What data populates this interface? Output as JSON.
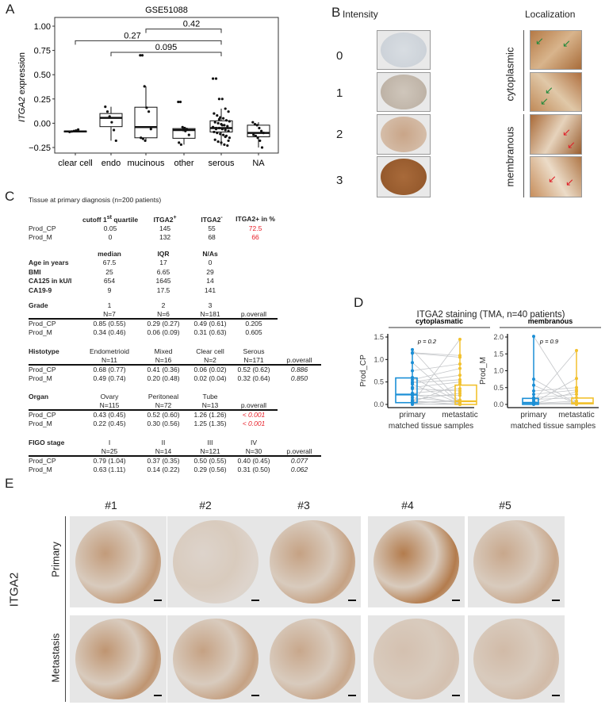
{
  "panels": {
    "a": "A",
    "b": "B",
    "c": "C",
    "d": "D",
    "e": "E"
  },
  "panel_a": {
    "chart_data": {
      "type": "box",
      "title": "GSE51088",
      "ylabel_italic": "ITGA2",
      "ylabel_rest": " expression",
      "ylim": [
        -0.3,
        1.08
      ],
      "yticks": [
        -0.25,
        0,
        0.25,
        0.5,
        0.75,
        1.0
      ],
      "ytick_labels": [
        "−0.25",
        "0.00",
        "0.25",
        "0.50",
        "0.75",
        "1.00"
      ],
      "categories": [
        "clear cell",
        "endo",
        "mucinous",
        "other",
        "serous",
        "NA"
      ],
      "boxes": [
        {
          "q1": -0.09,
          "median": -0.085,
          "q3": -0.08,
          "lo": -0.09,
          "hi": -0.075,
          "points": [
            -0.09,
            -0.085,
            -0.08,
            -0.075,
            -0.065
          ]
        },
        {
          "q1": -0.035,
          "median": 0.055,
          "q3": 0.1,
          "lo": -0.18,
          "hi": 0.17,
          "points": [
            0.17,
            0.12,
            0.07,
            0.01,
            -0.07,
            -0.18
          ]
        },
        {
          "q1": -0.15,
          "median": -0.04,
          "q3": 0.165,
          "lo": -0.18,
          "hi": 0.38,
          "points": [
            0.7,
            0.7,
            0.38,
            0.16,
            0.12,
            -0.06,
            -0.15,
            -0.16,
            -0.18
          ]
        },
        {
          "q1": -0.155,
          "median": -0.07,
          "q3": -0.055,
          "lo": -0.22,
          "hi": -0.04,
          "points": [
            0.22,
            0.22,
            -0.04,
            -0.05,
            -0.06,
            -0.12,
            -0.2,
            -0.22,
            -0.07,
            -0.08
          ]
        },
        {
          "q1": -0.09,
          "median": -0.05,
          "q3": 0.025,
          "lo": -0.23,
          "hi": 0.15,
          "points": [
            0.46,
            0.46,
            0.25,
            0.25,
            0.15,
            0.12,
            0.1,
            0.08,
            0.06,
            0.05,
            0.03,
            0.02,
            0.01,
            0.0,
            -0.01,
            -0.02,
            -0.03,
            -0.04,
            -0.05,
            -0.05,
            -0.06,
            -0.07,
            -0.08,
            -0.09,
            -0.1,
            -0.11,
            -0.12,
            -0.13,
            -0.15,
            -0.17,
            -0.19,
            -0.2,
            -0.22,
            -0.23,
            -0.04,
            -0.06,
            0.04,
            -0.02,
            -0.14,
            -0.18
          ]
        },
        {
          "q1": -0.14,
          "median": -0.1,
          "q3": -0.02,
          "lo": -0.25,
          "hi": 0.01,
          "points": [
            0.01,
            -0.01,
            -0.02,
            -0.05,
            -0.08,
            -0.1,
            -0.12,
            -0.13,
            -0.15,
            -0.18,
            -0.25
          ]
        }
      ],
      "brackets": [
        {
          "from": 2,
          "to": 4,
          "y": 0.97,
          "label": "0.42"
        },
        {
          "from": 0,
          "to": 4,
          "y": 0.85,
          "label": "0.27"
        },
        {
          "from": 1,
          "to": 4,
          "y": 0.73,
          "label": "0.095"
        }
      ]
    }
  },
  "panel_b": {
    "col_intensity": "Intensity",
    "col_localization": "Localization",
    "scores": [
      "0",
      "1",
      "2",
      "3"
    ],
    "loc_cytoplasmic": "cytoplasmic",
    "loc_membranous": "membranous",
    "arrow_colors": {
      "cytoplasmic": "#1f8a3a",
      "membranous": "#e0202a"
    }
  },
  "panel_c": {
    "title": "Tissue at primary diagnosis (n=200 patients)",
    "cutoff": {
      "h1a": "cutoff 1",
      "h1sup": "st",
      "h1b": " quartile",
      "h2": "ITGA2",
      "h2sup": "+",
      "h3": "ITGA2",
      "h3sup": "-",
      "h4": "ITGA2+ in %",
      "rows": [
        {
          "label": "Prod_CP",
          "values": [
            "0.05",
            "145",
            "55",
            "72.5"
          ]
        },
        {
          "label": "Prod_M",
          "values": [
            "0",
            "132",
            "68",
            "66"
          ]
        }
      ]
    },
    "clinical": {
      "headers": [
        "median",
        "IQR",
        "N/As"
      ],
      "rows": [
        {
          "label": "Age in years",
          "values": [
            "67.5",
            "17",
            "0"
          ]
        },
        {
          "label": "BMI",
          "values": [
            "25",
            "6.65",
            "29"
          ]
        },
        {
          "label": "CA125 in kU/l",
          "values": [
            "654",
            "1645",
            "14"
          ]
        },
        {
          "label": "CA19-9",
          "values": [
            "9",
            "17.5",
            "141"
          ]
        }
      ]
    },
    "sections": [
      {
        "title": "Grade",
        "cats": [
          "1",
          "2",
          "3"
        ],
        "ns": [
          "N=7",
          "N=6",
          "N=181"
        ],
        "p_label": "p.overall",
        "rows": [
          {
            "label": "Prod_CP",
            "values": [
              "0.85 (0.55)",
              "0.29 (0.27)",
              "0.49 (0.61)"
            ],
            "p": "0.205"
          },
          {
            "label": "Prod_M",
            "values": [
              "0.34 (0.46)",
              "0.06 (0.09)",
              "0.31 (0.63)"
            ],
            "p": "0.605"
          }
        ],
        "p_style": "plain"
      },
      {
        "title": "Histotype",
        "cats": [
          "Endometrioid",
          "Mixed",
          "Clear cell",
          "Serous"
        ],
        "ns": [
          "N=11",
          "N=16",
          "N=2",
          "N=171"
        ],
        "p_label": "p.overall",
        "rows": [
          {
            "label": "Prod_CP",
            "values": [
              "0.68 (0.77)",
              "0.41 (0.36)",
              "0.06 (0.02)",
              "0.52 (0.62)"
            ],
            "p": "0.886"
          },
          {
            "label": "Prod_M",
            "values": [
              "0.49 (0.74)",
              "0.20 (0.48)",
              "0.02 (0.04)",
              "0.32 (0.64)"
            ],
            "p": "0.850"
          }
        ],
        "p_style": "italic"
      },
      {
        "title": "Organ",
        "cats": [
          "Ovary",
          "Peritoneal",
          "Tube"
        ],
        "ns": [
          "N=115",
          "N=72",
          "N=13"
        ],
        "p_label": "p.overall",
        "rows": [
          {
            "label": "Prod_CP",
            "values": [
              "0.43 (0.45)",
              "0.52 (0.60)",
              "1.26 (1.26)"
            ],
            "p": "< 0.001"
          },
          {
            "label": "Prod_M",
            "values": [
              "0.22 (0.45)",
              "0.30 (0.56)",
              "1.25 (1.35)"
            ],
            "p": "< 0.001"
          }
        ],
        "p_style": "red"
      },
      {
        "title": "FIGO stage",
        "cats": [
          "I",
          "II",
          "III",
          "IV"
        ],
        "ns": [
          "N=25",
          "N=14",
          "N=121",
          "N=30"
        ],
        "p_label": "p.overall",
        "rows": [
          {
            "label": "Prod_CP",
            "values": [
              "0.79 (1.04)",
              "0.37 (0.35)",
              "0.50 (0.55)",
              "0.40 (0.45)"
            ],
            "p": "0.077"
          },
          {
            "label": "Prod_M",
            "values": [
              "0.63 (1.11)",
              "0.14 (0.22)",
              "0.29 (0.56)",
              "0.31 (0.50)"
            ],
            "p": "0.062"
          }
        ],
        "p_style": "italic"
      }
    ]
  },
  "panel_d": {
    "title": "ITGA2 staining (TMA, n=40 patients)",
    "colors": {
      "primary": "#1b8fd6",
      "metastatic": "#f2c12e",
      "line": "#c4c6c9"
    },
    "chart_data": [
      {
        "type": "box-paired",
        "subtitle": "cytoplasmatic",
        "ylabel": "Prod_CP",
        "xlabel": "matched tissue samples",
        "categories": [
          "primary",
          "metastatic"
        ],
        "p_text": "p = 0.2",
        "ylim": [
          0,
          1.5
        ],
        "yticks": [
          0,
          0.5,
          1.0,
          1.5
        ],
        "ytick_labels": [
          "0.0",
          "0.5",
          "1.0",
          "1.5"
        ],
        "boxes": [
          {
            "q1": 0.04,
            "median": 0.22,
            "q3": 0.59
          },
          {
            "q1": 0.0,
            "median": 0.07,
            "q3": 0.43
          }
        ],
        "pairs": [
          [
            1.22,
            0.05
          ],
          [
            1.15,
            1.09
          ],
          [
            1.14,
            1.05
          ],
          [
            0.93,
            0.02
          ],
          [
            0.75,
            0.9
          ],
          [
            0.6,
            0.05
          ],
          [
            0.55,
            0.8
          ],
          [
            0.5,
            0.65
          ],
          [
            0.48,
            0.55
          ],
          [
            0.45,
            0.02
          ],
          [
            0.38,
            0.5
          ],
          [
            0.35,
            0.3
          ],
          [
            0.25,
            0.35
          ],
          [
            0.22,
            0.02
          ],
          [
            0.2,
            0.2
          ],
          [
            0.15,
            0.05
          ],
          [
            0.1,
            0.25
          ],
          [
            0.08,
            0.0
          ],
          [
            0.05,
            0.45
          ],
          [
            0.03,
            1.45
          ],
          [
            0.02,
            0.1
          ],
          [
            0.0,
            0.02
          ],
          [
            0.05,
            0.07
          ],
          [
            0.01,
            0.0
          ]
        ]
      },
      {
        "type": "box-paired",
        "subtitle": "membranous",
        "ylabel": "Prod_M",
        "xlabel": "matched tissue samples",
        "categories": [
          "primary",
          "metastatic"
        ],
        "p_text": "p = 0.9",
        "ylim": [
          0,
          2.0
        ],
        "yticks": [
          0,
          0.5,
          1.0,
          1.5,
          2.0
        ],
        "ytick_labels": [
          "0.0",
          "0.5",
          "1.0",
          "1.5",
          "2.0"
        ],
        "boxes": [
          {
            "q1": 0.0,
            "median": 0.05,
            "q3": 0.18
          },
          {
            "q1": 0.02,
            "median": 0.04,
            "q3": 0.19
          }
        ],
        "pairs": [
          [
            2.02,
            0.02
          ],
          [
            0.75,
            0.03
          ],
          [
            0.57,
            0.02
          ],
          [
            0.4,
            0.5
          ],
          [
            0.3,
            0.43
          ],
          [
            0.2,
            0.3
          ],
          [
            0.15,
            0.2
          ],
          [
            0.1,
            1.6
          ],
          [
            0.05,
            0.77
          ],
          [
            0.03,
            0.1
          ],
          [
            0.02,
            0.05
          ],
          [
            0.0,
            0.0
          ],
          [
            0.01,
            0.38
          ],
          [
            0.04,
            0.03
          ]
        ]
      }
    ]
  },
  "panel_e": {
    "marker": "ITGA2",
    "rows": [
      "Primary",
      "Metastasis"
    ],
    "cases": [
      "#1",
      "#2",
      "#3",
      "#4",
      "#5"
    ],
    "stain_intensity": [
      [
        0.6,
        0.15,
        0.55,
        0.85,
        0.5
      ],
      [
        0.65,
        0.55,
        0.5,
        0.3,
        0.35
      ]
    ]
  }
}
